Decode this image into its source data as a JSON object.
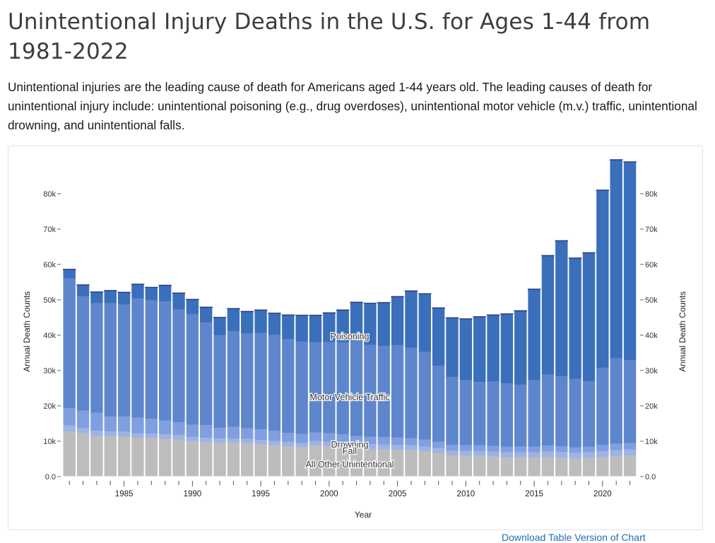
{
  "page": {
    "title": "Unintentional Injury Deaths in the U.S. for Ages 1-44 from 1981-2022",
    "intro": "Unintentional injuries are the leading cause of death for Americans aged 1-44 years old. The leading causes of death for unintentional injury include: unintentional poisoning (e.g., drug overdoses), unintentional motor vehicle (m.v.) traffic, unintentional drowning, and unintentional falls.",
    "footer_link": "Download Table Version of Chart"
  },
  "chart_data": {
    "type": "bar",
    "stacked": true,
    "xlabel": "Year",
    "ylabel": "Annual Death Counts",
    "ylim": [
      0,
      90000
    ],
    "y_ticks": [
      0,
      10000,
      20000,
      30000,
      40000,
      50000,
      60000,
      70000,
      80000
    ],
    "y_tick_labels": [
      "0.0",
      "10k",
      "20k",
      "30k",
      "40k",
      "50k",
      "60k",
      "70k",
      "80k"
    ],
    "x_tick_labels": [
      "1985",
      "1990",
      "1995",
      "2000",
      "2005",
      "2010",
      "2015",
      "2020"
    ],
    "years": [
      1981,
      1982,
      1983,
      1984,
      1985,
      1986,
      1987,
      1988,
      1989,
      1990,
      1991,
      1992,
      1993,
      1994,
      1995,
      1996,
      1997,
      1998,
      1999,
      2000,
      2001,
      2002,
      2003,
      2004,
      2005,
      2006,
      2007,
      2008,
      2009,
      2010,
      2011,
      2012,
      2013,
      2014,
      2015,
      2016,
      2017,
      2018,
      2019,
      2020,
      2021,
      2022
    ],
    "series": [
      {
        "name": "All Other Unintentional",
        "color": "#bdbdbd",
        "values": [
          12800,
          12300,
          11600,
          11400,
          11300,
          11000,
          10900,
          10700,
          10500,
          10000,
          9800,
          9600,
          9600,
          9500,
          9200,
          8900,
          8600,
          8300,
          8800,
          8600,
          8500,
          8000,
          7800,
          7700,
          7600,
          7500,
          7100,
          6700,
          6000,
          5900,
          5900,
          5700,
          5400,
          5400,
          5400,
          5500,
          5400,
          5200,
          5300,
          5500,
          5800,
          6000
        ]
      },
      {
        "name": "Fall",
        "color": "#9db3e5",
        "values": [
          1700,
          1400,
          1400,
          1400,
          1400,
          1300,
          1300,
          1300,
          1300,
          1200,
          1200,
          1200,
          1200,
          1200,
          1200,
          1200,
          1200,
          1200,
          1300,
          1300,
          1300,
          1300,
          1400,
          1400,
          1400,
          1400,
          1400,
          1400,
          1400,
          1400,
          1400,
          1400,
          1500,
          1500,
          1500,
          1600,
          1600,
          1600,
          1600,
          1700,
          1700,
          1700
        ]
      },
      {
        "name": "Drowning",
        "color": "#7f9fe0",
        "values": [
          4900,
          5000,
          5100,
          4200,
          4300,
          4400,
          4200,
          3900,
          3600,
          3500,
          3600,
          3000,
          3300,
          3000,
          3000,
          2900,
          2600,
          2600,
          2400,
          2400,
          2200,
          2200,
          2100,
          2100,
          2100,
          2000,
          2000,
          1800,
          1600,
          1600,
          1600,
          1600,
          1600,
          1600,
          1600,
          1700,
          1600,
          1500,
          1600,
          1800,
          1800,
          1800
        ]
      },
      {
        "name": "Motor Vehicle Traffic",
        "color": "#5e86cc",
        "values": [
          36700,
          32300,
          31000,
          32100,
          31700,
          33700,
          33500,
          33700,
          31900,
          31300,
          29000,
          26200,
          27100,
          26800,
          27300,
          27100,
          26500,
          26100,
          25500,
          25800,
          26000,
          26900,
          26000,
          25800,
          26100,
          25600,
          24800,
          21500,
          19200,
          18400,
          17900,
          18200,
          17900,
          17500,
          18800,
          20100,
          19800,
          19400,
          18500,
          21800,
          24200,
          23500
        ]
      },
      {
        "name": "Poisoning",
        "color": "#3a6fbb",
        "values": [
          2500,
          3200,
          3100,
          3500,
          3400,
          4000,
          3600,
          4500,
          4600,
          4100,
          4300,
          5000,
          6300,
          6200,
          6400,
          6100,
          6800,
          7400,
          7600,
          8200,
          9100,
          10900,
          11700,
          12200,
          13700,
          16000,
          16400,
          16300,
          16700,
          17300,
          18400,
          18800,
          19600,
          20900,
          25700,
          33600,
          38300,
          34100,
          36300,
          50200,
          56100,
          56000
        ]
      }
    ],
    "series_labels_on_chart": [
      "Poisoning",
      "Motor Vehicle Traffic",
      "Drowning",
      "Fall",
      "All Other Unintentional"
    ]
  }
}
